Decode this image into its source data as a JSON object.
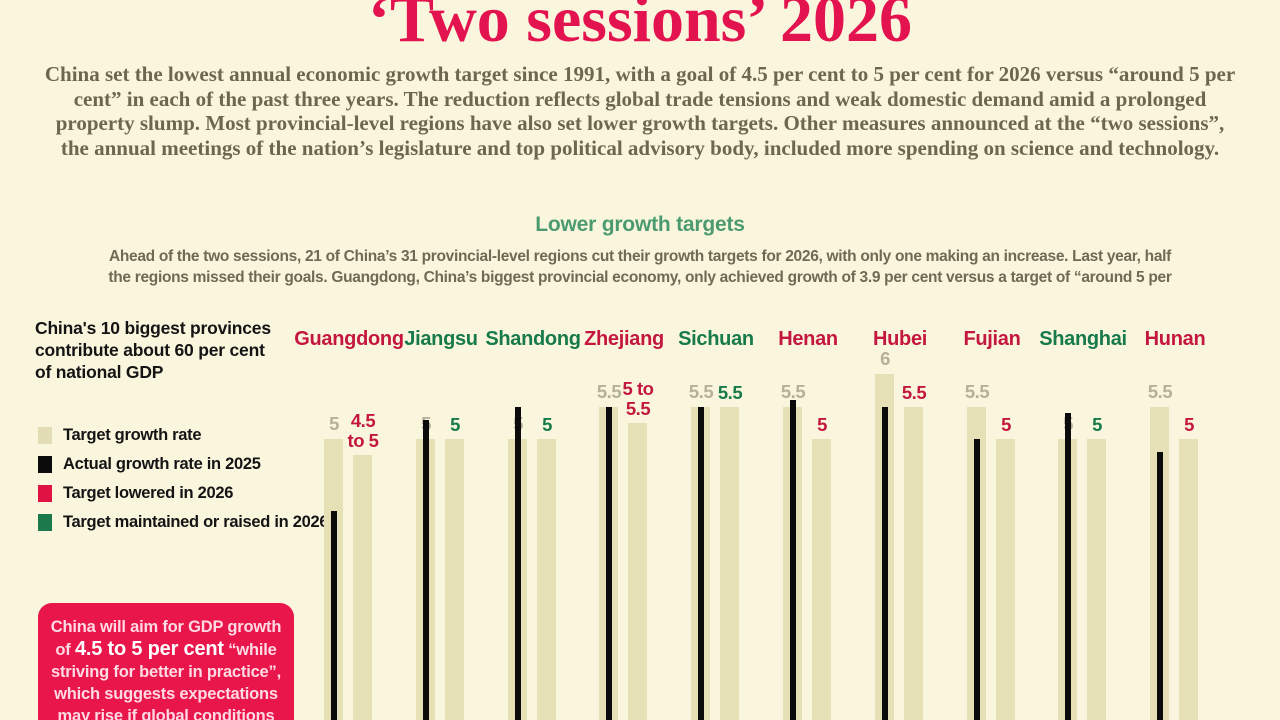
{
  "title": "‘Two sessions’ 2026",
  "intro": "China set the lowest annual economic growth target since 1991, with a goal of 4.5 per cent to 5 per cent for 2026 versus “around 5 per cent” in each of the past three years. The reduction reflects global trade tensions and weak domestic demand amid a prolonged property slump. Most provincial-level regions have also set lower growth targets. Other measures announced at the “two sessions”, the annual meetings of the nation’s legislature and top political advisory body, included more spending on science and technology.",
  "section": {
    "heading": "Lower growth targets",
    "subtext": "Ahead of the two sessions, 21 of China’s 31 provincial-level regions cut their growth targets for 2026, with only one making an increase. Last year, half the regions missed their goals. Guangdong, China’s biggest provincial economy, only achieved growth of 3.9 per cent versus a target of “around 5 per"
  },
  "chart_note": {
    "lines": [
      "China's 10 biggest provinces",
      "contribute about 60 per cent",
      "of national GDP"
    ]
  },
  "legend": [
    {
      "label": "Target growth rate",
      "color": "#E2DDB4"
    },
    {
      "label": "Actual growth rate in 2025",
      "color": "#0B0B0B"
    },
    {
      "label": "Target lowered in 2026",
      "color": "#E01243"
    },
    {
      "label": "Target maintained or raised in 2026",
      "color": "#1B7A4B"
    }
  ],
  "callout": {
    "pre": "China will aim for GDP growth of ",
    "highlight": "4.5 to 5 per cent",
    "post": " “while striving for better in practice”, which suggests expectations may rise if global conditions improve"
  },
  "palette": {
    "background": "#FAF6DE",
    "title_red": "#E31350",
    "province_red": "#C4173F",
    "province_green": "#177A4A",
    "bar_beige": "#E5E0B6",
    "bar_black": "#0B0B0B",
    "value_gray": "#B5B098",
    "heading_green": "#4C9A6F",
    "callout_bg": "#E9164B",
    "callout_text": "#FFD9E3"
  },
  "chart_data": {
    "type": "bar",
    "title": "Lower growth targets",
    "unit": "per cent GDP growth",
    "categories": [
      "Guangdong",
      "Jiangsu",
      "Shandong",
      "Zhejiang",
      "Sichuan",
      "Henan",
      "Hubei",
      "Fujian",
      "Shanghai",
      "Hunan"
    ],
    "ylim": [
      0,
      6.5
    ],
    "legend_position": "left",
    "grid": false,
    "series": [
      {
        "name": "Target growth rate",
        "values": [
          5,
          5,
          5,
          5.5,
          5.5,
          5.5,
          6,
          5.5,
          5,
          5.5
        ],
        "labels": [
          "5",
          "5",
          "5",
          "5.5",
          "5.5",
          "5.5",
          "6",
          "5.5",
          "5",
          "5.5"
        ]
      },
      {
        "name": "Actual growth rate in 2025",
        "values": [
          3.9,
          5.3,
          5.5,
          5.5,
          5.5,
          5.6,
          5.5,
          5.0,
          5.4,
          4.8
        ]
      },
      {
        "name": "Target in 2026",
        "values": [
          4.75,
          5,
          5,
          5.25,
          5.5,
          5,
          5.5,
          5,
          5,
          5
        ],
        "labels": [
          "4.5\nto 5",
          "5",
          "5",
          "5 to\n5.5",
          "5.5",
          "5",
          "5.5",
          "5",
          "5",
          "5"
        ],
        "status": [
          "lowered",
          "maintained",
          "maintained",
          "lowered",
          "maintained",
          "lowered",
          "lowered",
          "lowered",
          "maintained",
          "lowered"
        ]
      }
    ]
  }
}
